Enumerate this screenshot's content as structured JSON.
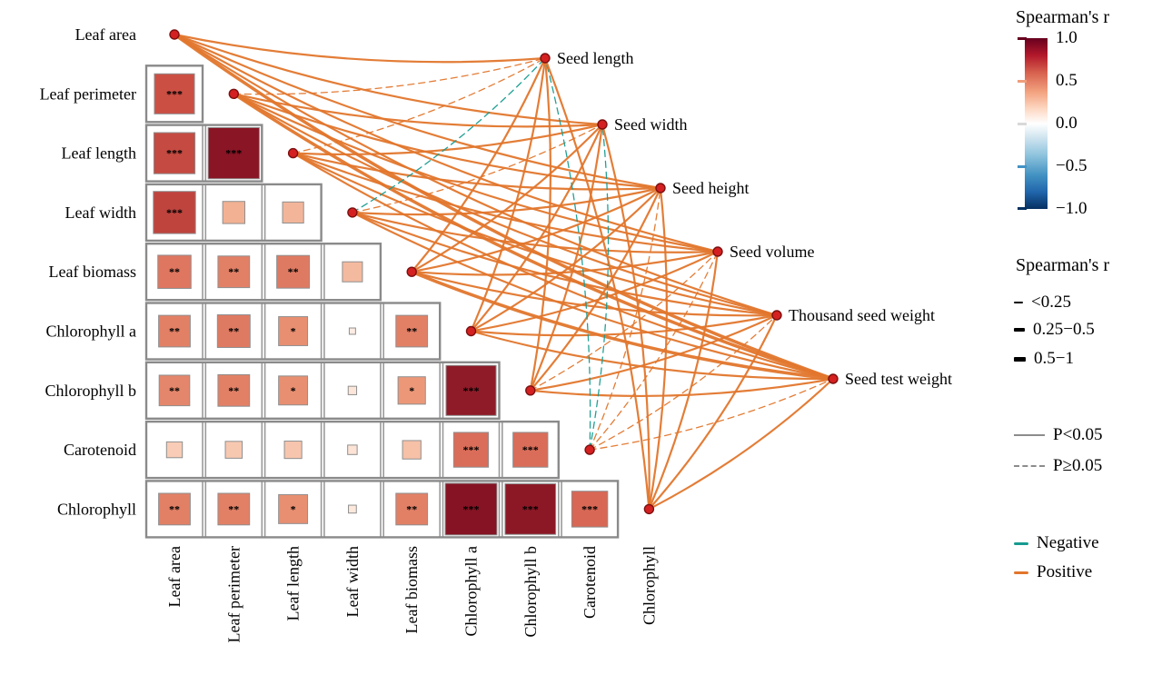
{
  "chart_data": {
    "type": "correlation-matrix-network",
    "colors": {
      "positive": "#e2762c",
      "negative": "#169b8f",
      "node": "#d42020",
      "node_stroke": "#7d1010",
      "star": "#f6e7b3",
      "grid": "#9a9a9a"
    },
    "matrix": {
      "variables": [
        "Leaf area",
        "Leaf perimeter",
        "Leaf length",
        "Leaf width",
        "Leaf biomass",
        "Chlorophyll a",
        "Chlorophyll b",
        "Carotenoid",
        "Chlorophyll"
      ],
      "cells": [
        {
          "row": "Leaf perimeter",
          "col": "Leaf area",
          "r": 0.76,
          "sig": "***"
        },
        {
          "row": "Leaf length",
          "col": "Leaf area",
          "r": 0.78,
          "sig": "***"
        },
        {
          "row": "Leaf length",
          "col": "Leaf perimeter",
          "r": 0.97,
          "sig": "***"
        },
        {
          "row": "Leaf width",
          "col": "Leaf area",
          "r": 0.8,
          "sig": "***"
        },
        {
          "row": "Leaf width",
          "col": "Leaf perimeter",
          "r": 0.42,
          "sig": ""
        },
        {
          "row": "Leaf width",
          "col": "Leaf length",
          "r": 0.4,
          "sig": ""
        },
        {
          "row": "Leaf biomass",
          "col": "Leaf area",
          "r": 0.63,
          "sig": "**"
        },
        {
          "row": "Leaf biomass",
          "col": "Leaf perimeter",
          "r": 0.6,
          "sig": "**"
        },
        {
          "row": "Leaf biomass",
          "col": "Leaf length",
          "r": 0.62,
          "sig": "**"
        },
        {
          "row": "Leaf biomass",
          "col": "Leaf width",
          "r": 0.38,
          "sig": ""
        },
        {
          "row": "Chlorophyll a",
          "col": "Leaf area",
          "r": 0.6,
          "sig": "**"
        },
        {
          "row": "Chlorophyll a",
          "col": "Leaf perimeter",
          "r": 0.62,
          "sig": "**"
        },
        {
          "row": "Chlorophyll a",
          "col": "Leaf length",
          "r": 0.55,
          "sig": "*"
        },
        {
          "row": "Chlorophyll a",
          "col": "Leaf width",
          "r": 0.12,
          "sig": ""
        },
        {
          "row": "Chlorophyll a",
          "col": "Leaf biomass",
          "r": 0.6,
          "sig": "**"
        },
        {
          "row": "Chlorophyll b",
          "col": "Leaf area",
          "r": 0.58,
          "sig": "**"
        },
        {
          "row": "Chlorophyll b",
          "col": "Leaf perimeter",
          "r": 0.6,
          "sig": "**"
        },
        {
          "row": "Chlorophyll b",
          "col": "Leaf length",
          "r": 0.55,
          "sig": "*"
        },
        {
          "row": "Chlorophyll b",
          "col": "Leaf width",
          "r": 0.16,
          "sig": ""
        },
        {
          "row": "Chlorophyll b",
          "col": "Leaf biomass",
          "r": 0.52,
          "sig": "*"
        },
        {
          "row": "Chlorophyll b",
          "col": "Chlorophyll a",
          "r": 0.95,
          "sig": "***"
        },
        {
          "row": "Carotenoid",
          "col": "Leaf area",
          "r": 0.3,
          "sig": ""
        },
        {
          "row": "Carotenoid",
          "col": "Leaf perimeter",
          "r": 0.32,
          "sig": ""
        },
        {
          "row": "Carotenoid",
          "col": "Leaf length",
          "r": 0.33,
          "sig": ""
        },
        {
          "row": "Carotenoid",
          "col": "Leaf width",
          "r": 0.18,
          "sig": ""
        },
        {
          "row": "Carotenoid",
          "col": "Leaf biomass",
          "r": 0.35,
          "sig": ""
        },
        {
          "row": "Carotenoid",
          "col": "Chlorophyll a",
          "r": 0.66,
          "sig": "***"
        },
        {
          "row": "Carotenoid",
          "col": "Chlorophyll b",
          "r": 0.66,
          "sig": "***"
        },
        {
          "row": "Chlorophyll",
          "col": "Leaf area",
          "r": 0.6,
          "sig": "**"
        },
        {
          "row": "Chlorophyll",
          "col": "Leaf perimeter",
          "r": 0.6,
          "sig": "**"
        },
        {
          "row": "Chlorophyll",
          "col": "Leaf length",
          "r": 0.55,
          "sig": "*"
        },
        {
          "row": "Chlorophyll",
          "col": "Leaf width",
          "r": 0.15,
          "sig": ""
        },
        {
          "row": "Chlorophyll",
          "col": "Leaf biomass",
          "r": 0.6,
          "sig": "**"
        },
        {
          "row": "Chlorophyll",
          "col": "Chlorophyll a",
          "r": 0.98,
          "sig": "***"
        },
        {
          "row": "Chlorophyll",
          "col": "Chlorophyll b",
          "r": 0.96,
          "sig": "***"
        },
        {
          "row": "Chlorophyll",
          "col": "Carotenoid",
          "r": 0.68,
          "sig": "***"
        }
      ]
    },
    "network": {
      "left_nodes": [
        "Leaf area",
        "Leaf perimeter",
        "Leaf length",
        "Leaf width",
        "Leaf biomass",
        "Chlorophyll a",
        "Chlorophyll b",
        "Carotenoid",
        "Chlorophyll"
      ],
      "right_nodes": [
        "Seed length",
        "Seed width",
        "Seed height",
        "Seed volume",
        "Thousand seed weight",
        "Seed test weight"
      ],
      "edges": [
        {
          "source": "Leaf area",
          "target": "Seed length",
          "sign": "pos",
          "p": "P<0.05",
          "width": "0.25-0.5"
        },
        {
          "source": "Leaf area",
          "target": "Seed width",
          "sign": "pos",
          "p": "P<0.05",
          "width": "0.25-0.5"
        },
        {
          "source": "Leaf area",
          "target": "Seed height",
          "sign": "pos",
          "p": "P<0.05",
          "width": "0.25-0.5"
        },
        {
          "source": "Leaf area",
          "target": "Seed volume",
          "sign": "pos",
          "p": "P<0.05",
          "width": "0.25-0.5"
        },
        {
          "source": "Leaf area",
          "target": "Thousand seed weight",
          "sign": "pos",
          "p": "P<0.05",
          "width": "0.25-0.5"
        },
        {
          "source": "Leaf area",
          "target": "Seed test weight",
          "sign": "pos",
          "p": "P<0.05",
          "width": "0.5-1"
        },
        {
          "source": "Leaf perimeter",
          "target": "Seed length",
          "sign": "pos",
          "p": "P≥0.05",
          "width": "<0.25"
        },
        {
          "source": "Leaf perimeter",
          "target": "Seed width",
          "sign": "pos",
          "p": "P<0.05",
          "width": "0.25-0.5"
        },
        {
          "source": "Leaf perimeter",
          "target": "Seed height",
          "sign": "pos",
          "p": "P<0.05",
          "width": "0.25-0.5"
        },
        {
          "source": "Leaf perimeter",
          "target": "Seed volume",
          "sign": "pos",
          "p": "P<0.05",
          "width": "0.25-0.5"
        },
        {
          "source": "Leaf perimeter",
          "target": "Thousand seed weight",
          "sign": "pos",
          "p": "P<0.05",
          "width": "0.25-0.5"
        },
        {
          "source": "Leaf perimeter",
          "target": "Seed test weight",
          "sign": "pos",
          "p": "P<0.05",
          "width": "0.5-1"
        },
        {
          "source": "Leaf length",
          "target": "Seed length",
          "sign": "pos",
          "p": "P≥0.05",
          "width": "<0.25"
        },
        {
          "source": "Leaf length",
          "target": "Seed width",
          "sign": "pos",
          "p": "P<0.05",
          "width": "0.25-0.5"
        },
        {
          "source": "Leaf length",
          "target": "Seed height",
          "sign": "pos",
          "p": "P<0.05",
          "width": "0.25-0.5"
        },
        {
          "source": "Leaf length",
          "target": "Seed volume",
          "sign": "pos",
          "p": "P<0.05",
          "width": "0.25-0.5"
        },
        {
          "source": "Leaf length",
          "target": "Thousand seed weight",
          "sign": "pos",
          "p": "P<0.05",
          "width": "0.25-0.5"
        },
        {
          "source": "Leaf length",
          "target": "Seed test weight",
          "sign": "pos",
          "p": "P<0.05",
          "width": "0.25-0.5"
        },
        {
          "source": "Leaf width",
          "target": "Seed length",
          "sign": "neg",
          "p": "P≥0.05",
          "width": "<0.25"
        },
        {
          "source": "Leaf width",
          "target": "Seed width",
          "sign": "pos",
          "p": "P≥0.05",
          "width": "<0.25"
        },
        {
          "source": "Leaf width",
          "target": "Seed height",
          "sign": "pos",
          "p": "P<0.05",
          "width": "0.25-0.5"
        },
        {
          "source": "Leaf width",
          "target": "Seed volume",
          "sign": "pos",
          "p": "P<0.05",
          "width": "0.25-0.5"
        },
        {
          "source": "Leaf width",
          "target": "Thousand seed weight",
          "sign": "pos",
          "p": "P<0.05",
          "width": "0.25-0.5"
        },
        {
          "source": "Leaf width",
          "target": "Seed test weight",
          "sign": "pos",
          "p": "P<0.05",
          "width": "0.25-0.5"
        },
        {
          "source": "Leaf biomass",
          "target": "Seed length",
          "sign": "pos",
          "p": "P<0.05",
          "width": "0.25-0.5"
        },
        {
          "source": "Leaf biomass",
          "target": "Seed width",
          "sign": "pos",
          "p": "P<0.05",
          "width": "0.25-0.5"
        },
        {
          "source": "Leaf biomass",
          "target": "Seed height",
          "sign": "pos",
          "p": "P<0.05",
          "width": "0.25-0.5"
        },
        {
          "source": "Leaf biomass",
          "target": "Seed volume",
          "sign": "pos",
          "p": "P<0.05",
          "width": "0.25-0.5"
        },
        {
          "source": "Leaf biomass",
          "target": "Thousand seed weight",
          "sign": "pos",
          "p": "P<0.05",
          "width": "0.25-0.5"
        },
        {
          "source": "Leaf biomass",
          "target": "Seed test weight",
          "sign": "pos",
          "p": "P<0.05",
          "width": "0.5-1"
        },
        {
          "source": "Chlorophyll a",
          "target": "Seed length",
          "sign": "pos",
          "p": "P<0.05",
          "width": "0.25-0.5"
        },
        {
          "source": "Chlorophyll a",
          "target": "Seed width",
          "sign": "pos",
          "p": "P<0.05",
          "width": "0.25-0.5"
        },
        {
          "source": "Chlorophyll a",
          "target": "Seed height",
          "sign": "pos",
          "p": "P<0.05",
          "width": "0.25-0.5"
        },
        {
          "source": "Chlorophyll a",
          "target": "Seed volume",
          "sign": "pos",
          "p": "P<0.05",
          "width": "0.25-0.5"
        },
        {
          "source": "Chlorophyll a",
          "target": "Thousand seed weight",
          "sign": "pos",
          "p": "P<0.05",
          "width": "0.25-0.5"
        },
        {
          "source": "Chlorophyll a",
          "target": "Seed test weight",
          "sign": "pos",
          "p": "P<0.05",
          "width": "0.25-0.5"
        },
        {
          "source": "Chlorophyll b",
          "target": "Seed length",
          "sign": "pos",
          "p": "P<0.05",
          "width": "0.25-0.5"
        },
        {
          "source": "Chlorophyll b",
          "target": "Seed width",
          "sign": "pos",
          "p": "P<0.05",
          "width": "0.25-0.5"
        },
        {
          "source": "Chlorophyll b",
          "target": "Seed height",
          "sign": "pos",
          "p": "P<0.05",
          "width": "0.25-0.5"
        },
        {
          "source": "Chlorophyll b",
          "target": "Seed volume",
          "sign": "pos",
          "p": "P≥0.05",
          "width": "<0.25"
        },
        {
          "source": "Chlorophyll b",
          "target": "Thousand seed weight",
          "sign": "pos",
          "p": "P<0.05",
          "width": "0.25-0.5"
        },
        {
          "source": "Chlorophyll b",
          "target": "Seed test weight",
          "sign": "pos",
          "p": "P<0.05",
          "width": "0.25-0.5"
        },
        {
          "source": "Carotenoid",
          "target": "Seed length",
          "sign": "neg",
          "p": "P≥0.05",
          "width": "<0.25"
        },
        {
          "source": "Carotenoid",
          "target": "Seed width",
          "sign": "neg",
          "p": "P≥0.05",
          "width": "<0.25"
        },
        {
          "source": "Carotenoid",
          "target": "Seed height",
          "sign": "pos",
          "p": "P≥0.05",
          "width": "<0.25"
        },
        {
          "source": "Carotenoid",
          "target": "Seed volume",
          "sign": "pos",
          "p": "P≥0.05",
          "width": "<0.25"
        },
        {
          "source": "Carotenoid",
          "target": "Thousand seed weight",
          "sign": "pos",
          "p": "P≥0.05",
          "width": "<0.25"
        },
        {
          "source": "Carotenoid",
          "target": "Seed test weight",
          "sign": "pos",
          "p": "P≥0.05",
          "width": "<0.25"
        },
        {
          "source": "Chlorophyll",
          "target": "Seed length",
          "sign": "pos",
          "p": "P<0.05",
          "width": "0.25-0.5"
        },
        {
          "source": "Chlorophyll",
          "target": "Seed width",
          "sign": "pos",
          "p": "P<0.05",
          "width": "0.25-0.5"
        },
        {
          "source": "Chlorophyll",
          "target": "Seed height",
          "sign": "pos",
          "p": "P<0.05",
          "width": "0.25-0.5"
        },
        {
          "source": "Chlorophyll",
          "target": "Seed volume",
          "sign": "pos",
          "p": "P<0.05",
          "width": "0.25-0.5"
        },
        {
          "source": "Chlorophyll",
          "target": "Thousand seed weight",
          "sign": "pos",
          "p": "P<0.05",
          "width": "0.25-0.5"
        },
        {
          "source": "Chlorophyll",
          "target": "Seed test weight",
          "sign": "pos",
          "p": "P<0.05",
          "width": "0.25-0.5"
        }
      ]
    },
    "legend": {
      "colorbar": {
        "title": "Spearman's r",
        "ticks": [
          "1.0",
          "0.5",
          "0.0",
          "−0.5",
          "−1.0"
        ],
        "range": [
          -1,
          1
        ]
      },
      "width": {
        "title": "Spearman's r",
        "items": [
          "<0.25",
          "0.25−0.5",
          "0.5−1"
        ]
      },
      "pvalue": {
        "items": [
          "P<0.05",
          "P≥0.05"
        ]
      },
      "sign": {
        "items": [
          "Negative",
          "Positive"
        ]
      }
    }
  }
}
